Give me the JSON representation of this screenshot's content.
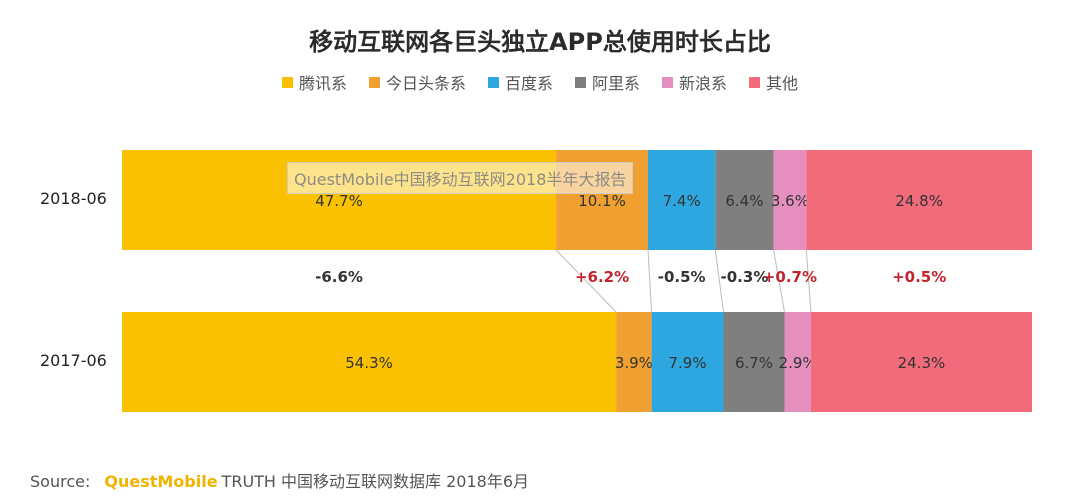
{
  "title": "移动互联网各巨头独立APP总使用时长占比",
  "legend": [
    {
      "label": "腾讯系",
      "color": "#f9c100"
    },
    {
      "label": "今日头条系",
      "color": "#f0a030"
    },
    {
      "label": "百度系",
      "color": "#2ea7e0"
    },
    {
      "label": "阿里系",
      "color": "#7f7f7f"
    },
    {
      "label": "新浪系",
      "color": "#e58fbf"
    },
    {
      "label": "其他",
      "color": "#f26b7a"
    }
  ],
  "watermark": "QuestMobile中国移动互联网2018半年大报告",
  "source": {
    "prefix": "Source:",
    "brand": "QuestMobile",
    "text": "TRUTH 中国移动互联网数据库 2018年6月"
  },
  "chart_data": {
    "type": "bar",
    "orientation": "horizontal",
    "stacked": "percent",
    "categories": [
      "2018-06",
      "2017-06"
    ],
    "series": [
      {
        "name": "腾讯系",
        "color": "#f9c100",
        "values": [
          47.7,
          54.3
        ],
        "labels": [
          "47.7%",
          "54.3%"
        ]
      },
      {
        "name": "今日头条系",
        "color": "#f0a030",
        "values": [
          10.1,
          3.9
        ],
        "labels": [
          "10.1%",
          "3.9%"
        ]
      },
      {
        "name": "百度系",
        "color": "#2ea7e0",
        "values": [
          7.4,
          7.9
        ],
        "labels": [
          "7.4%",
          "7.9%"
        ]
      },
      {
        "name": "阿里系",
        "color": "#7f7f7f",
        "values": [
          6.4,
          6.7
        ],
        "labels": [
          "6.4%",
          "6.7%"
        ]
      },
      {
        "name": "新浪系",
        "color": "#e58fbf",
        "values": [
          3.6,
          2.9
        ],
        "labels": [
          "3.6%",
          "2.9%"
        ]
      },
      {
        "name": "其他",
        "color": "#f26b7a",
        "values": [
          24.8,
          24.3
        ],
        "labels": [
          "24.8%",
          "24.3%"
        ]
      }
    ],
    "changes": [
      "-6.6%",
      "+6.2%",
      "-0.5%",
      "-0.3%",
      "+0.7%",
      "+0.5%"
    ],
    "change_colors": [
      "#333333",
      "#c0242e",
      "#333333",
      "#333333",
      "#c0242e",
      "#c0242e"
    ]
  }
}
